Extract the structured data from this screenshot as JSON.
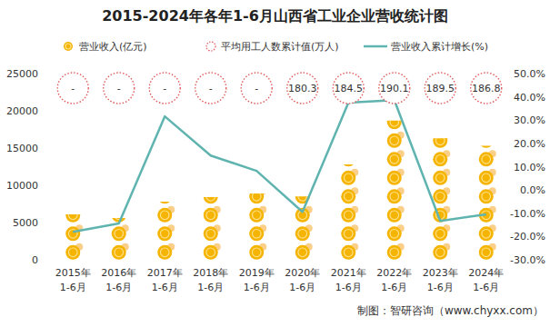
{
  "chart_data": {
    "type": "bar",
    "title": "2015-2024年各年1-6月山西省工业企业营收统计图",
    "source": "制图：智研咨询（www.chyxx.com）",
    "categories": [
      "2015年\n1-6月",
      "2016年\n1-6月",
      "2017年\n1-6月",
      "2018年\n1-6月",
      "2019年\n1-6月",
      "2020年\n1-6月",
      "2021年\n1-6月",
      "2022年\n1-6月",
      "2023年\n1-6月",
      "2024年\n1-6月"
    ],
    "ylim": [
      0,
      25000
    ],
    "yticks": [
      0,
      5000,
      10000,
      15000,
      20000,
      25000
    ],
    "y2lim": [
      -30,
      50
    ],
    "y2ticks": [
      {
        "value": -30,
        "label": "-30.0%"
      },
      {
        "value": -20,
        "label": "-20.0%"
      },
      {
        "value": -10,
        "label": "-10.0%"
      },
      {
        "value": 0,
        "label": "0.0%"
      },
      {
        "value": 10,
        "label": "10.0%"
      },
      {
        "value": 20,
        "label": "20.0%"
      },
      {
        "value": 30,
        "label": "30.0%"
      },
      {
        "value": 40,
        "label": "40.0%"
      },
      {
        "value": 50,
        "label": "50.0%"
      }
    ],
    "grid": false,
    "legend": "top",
    "series": [
      {
        "name": "营业收入(亿元)",
        "type": "bar",
        "marker": "coin",
        "color": "#f5b400",
        "values": [
          6100,
          5600,
          7800,
          8400,
          8900,
          8500,
          12800,
          18700,
          16300,
          15300
        ]
      },
      {
        "name": "平均用工人数累计值(万人)",
        "type": "scatter",
        "marker": "circle",
        "line_style": "dotted",
        "color": "#e05a5a",
        "data_labels": true,
        "values": [
          null,
          null,
          null,
          null,
          null,
          180.3,
          184.5,
          190.1,
          189.5,
          186.8
        ],
        "value_labels": [
          "-",
          "-",
          "-",
          "-",
          "-",
          "180.3",
          "184.5",
          "190.1",
          "189.5",
          "186.8"
        ]
      },
      {
        "name": "营业收入累计增长(%)",
        "type": "line",
        "axis": "y2",
        "color": "#5fb4b0",
        "line_style": "solid",
        "values": [
          -18,
          -14.4,
          31.6,
          14.8,
          8.2,
          -9.4,
          37.5,
          38.6,
          -13.3,
          -10.5
        ]
      }
    ]
  }
}
